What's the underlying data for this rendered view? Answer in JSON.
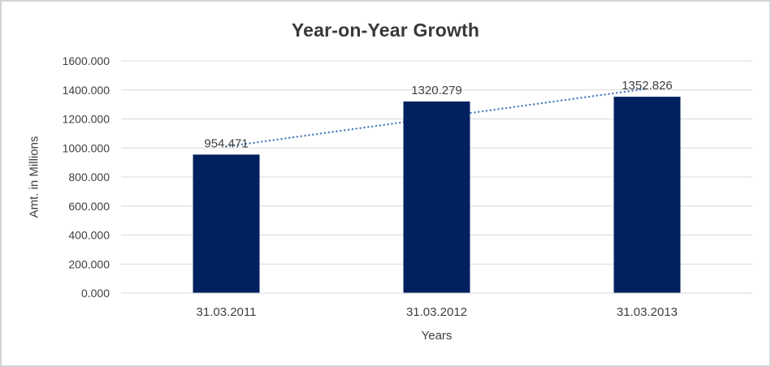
{
  "chart_data": {
    "type": "bar",
    "title": "Year-on-Year Growth",
    "xlabel": "Years",
    "ylabel": "Amt. in Millions",
    "categories": [
      "31.03.2011",
      "31.03.2012",
      "31.03.2013"
    ],
    "values": [
      954.471,
      1320.279,
      1352.826
    ],
    "data_labels": [
      "954.471",
      "1320.279",
      "1352.826"
    ],
    "ylim": [
      0,
      1600
    ],
    "ytick_step": 200,
    "ytick_labels": [
      "0.000",
      "200.000",
      "400.000",
      "600.000",
      "800.000",
      "1000.000",
      "1200.000",
      "1400.000",
      "1600.000"
    ],
    "grid": true,
    "legend": false,
    "trendline": {
      "type": "linear",
      "style": "dotted"
    },
    "colors": {
      "bar": "#002060",
      "trendline": "#4a7ec0",
      "gridline": "#d9d9d9",
      "axis_line": "#d9d9d9",
      "tick_text": "#404040",
      "data_label_text": "#404040",
      "title_text": "#383838",
      "canvas_border": "#d4d4d4",
      "background": "#ffffff"
    }
  }
}
